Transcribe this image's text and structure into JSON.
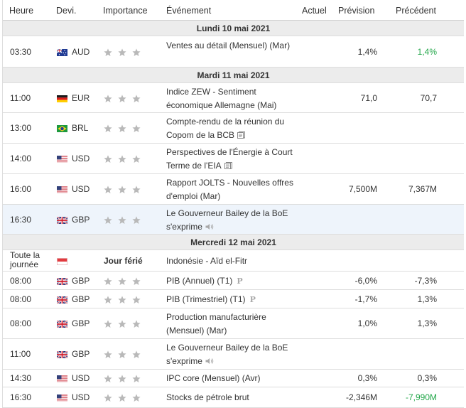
{
  "header": {
    "heure": "Heure",
    "devi": "Devi.",
    "importance": "Importance",
    "evenement": "Événement",
    "actuel": "Actuel",
    "prevision": "Prévision",
    "precedent": "Précédent"
  },
  "colors": {
    "positive": "#23a74a",
    "star": "#b9b9b9",
    "date_bg": "#ececec",
    "highlight_bg": "#eef4fb"
  },
  "days": [
    {
      "label": "Lundi 10 mai 2021",
      "events": [
        {
          "time": "03:30",
          "flag": "australia-flag",
          "currency": "AUD",
          "title": "Ventes au détail (Mensuel) (Mar)",
          "actual": "",
          "forecast": "1,4%",
          "previous": "1,4%",
          "previous_color": "green"
        }
      ]
    },
    {
      "label": "Mardi 11 mai 2021",
      "events": [
        {
          "time": "11:00",
          "flag": "germany-flag",
          "currency": "EUR",
          "title": "Indice ZEW - Sentiment économique Allemagne (Mai)",
          "actual": "",
          "forecast": "71,0",
          "previous": "70,7"
        },
        {
          "time": "13:00",
          "flag": "brazil-flag",
          "currency": "BRL",
          "title": "Compte-rendu de la réunion du Copom de la BCB",
          "icon": "document-icon",
          "actual": "",
          "forecast": "",
          "previous": ""
        },
        {
          "time": "14:00",
          "flag": "usa-flag",
          "currency": "USD",
          "title": "Perspectives de l'Énergie à Court Terme de l'EIA",
          "icon": "document-icon",
          "actual": "",
          "forecast": "",
          "previous": ""
        },
        {
          "time": "16:00",
          "flag": "usa-flag",
          "currency": "USD",
          "title": "Rapport JOLTS - Nouvelles offres d'emploi (Mar)",
          "actual": "",
          "forecast": "7,500M",
          "previous": "7,367M"
        },
        {
          "time": "16:30",
          "flag": "uk-flag",
          "currency": "GBP",
          "title": "Le Gouverneur Bailey de la BoE s'exprime",
          "icon": "speaker-icon",
          "actual": "",
          "forecast": "",
          "previous": "",
          "highlight": true
        }
      ]
    },
    {
      "label": "Mercredi 12 mai 2021",
      "events": [
        {
          "time": "Toute la journée",
          "flag": "indonesia-flag",
          "currency": "",
          "importance": "Jour férié",
          "title": "Indonésie - Aïd el-Fitr"
        },
        {
          "time": "08:00",
          "flag": "uk-flag",
          "currency": "GBP",
          "title": "PIB (Annuel) (T1)",
          "badge": "P",
          "actual": "",
          "forecast": "-6,0%",
          "previous": "-7,3%"
        },
        {
          "time": "08:00",
          "flag": "uk-flag",
          "currency": "GBP",
          "title": "PIB (Trimestriel) (T1)",
          "badge": "P",
          "actual": "",
          "forecast": "-1,7%",
          "previous": "1,3%"
        },
        {
          "time": "08:00",
          "flag": "uk-flag",
          "currency": "GBP",
          "title": "Production manufacturière (Mensuel) (Mar)",
          "actual": "",
          "forecast": "1,0%",
          "previous": "1,3%"
        },
        {
          "time": "11:00",
          "flag": "uk-flag",
          "currency": "GBP",
          "title": "Le Gouverneur Bailey de la BoE s'exprime",
          "icon": "speaker-icon",
          "actual": "",
          "forecast": "",
          "previous": ""
        },
        {
          "time": "14:30",
          "flag": "usa-flag",
          "currency": "USD",
          "title": "IPC core (Mensuel) (Avr)",
          "actual": "",
          "forecast": "0,3%",
          "previous": "0,3%"
        },
        {
          "time": "16:30",
          "flag": "usa-flag",
          "currency": "USD",
          "title": "Stocks de pétrole brut",
          "actual": "",
          "forecast": "-2,346M",
          "previous": "-7,990M",
          "previous_color": "green"
        }
      ]
    }
  ]
}
